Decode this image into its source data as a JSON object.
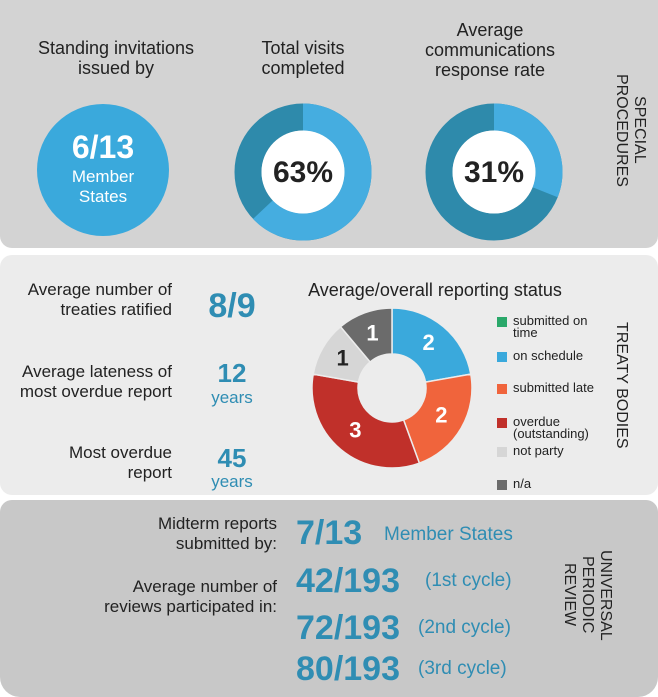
{
  "special_procedures": {
    "section_label": "SPECIAL PROCEDURES",
    "invitations": {
      "caption": "Standing invitations issued by",
      "value": "6/13",
      "unit": "Member States"
    }
  },
  "chart_data": [
    {
      "type": "donut",
      "title": "Total visits completed",
      "values": [
        63
      ],
      "value_labels": [
        "63%"
      ],
      "color": "#45ade0",
      "track_color": "#2e8aab"
    },
    {
      "type": "donut",
      "title": "Average communications response rate",
      "values": [
        31
      ],
      "value_labels": [
        "31%"
      ],
      "color": "#45ade0",
      "track_color": "#2e8aab"
    },
    {
      "type": "pie",
      "title": "Average/overall reporting status",
      "categories": [
        "submitted on time",
        "on schedule",
        "submitted late",
        "overdue (outstanding)",
        "not party",
        "n/a"
      ],
      "values": [
        0,
        2,
        2,
        3,
        1,
        1
      ],
      "colors": [
        "#2aa86a",
        "#3aa9dc",
        "#f0643c",
        "#c0302a",
        "#d6d6d6",
        "#6b6b6b"
      ]
    }
  ],
  "treaty_bodies": {
    "section_label": "TREATY BODIES",
    "stats": [
      {
        "label": "Average number of treaties ratified",
        "value": "8/9"
      },
      {
        "label": "Average lateness of most overdue report",
        "value": 12,
        "unit": "years"
      },
      {
        "label": "Most overdue report",
        "value": 45,
        "unit": "years"
      }
    ]
  },
  "upr": {
    "section_label": "UNIVERSAL PERIODIC REVIEW",
    "midterm": {
      "label": "Midterm reports submitted by:",
      "value": "7/13",
      "unit": "Member States"
    },
    "reviews": {
      "label": "Average number of reviews participated in:",
      "rows": [
        {
          "value": "42/193",
          "cycle": "(1st cycle)"
        },
        {
          "value": "72/193",
          "cycle": "(2nd cycle)"
        },
        {
          "value": "80/193",
          "cycle": "(3rd cycle)"
        }
      ]
    }
  }
}
